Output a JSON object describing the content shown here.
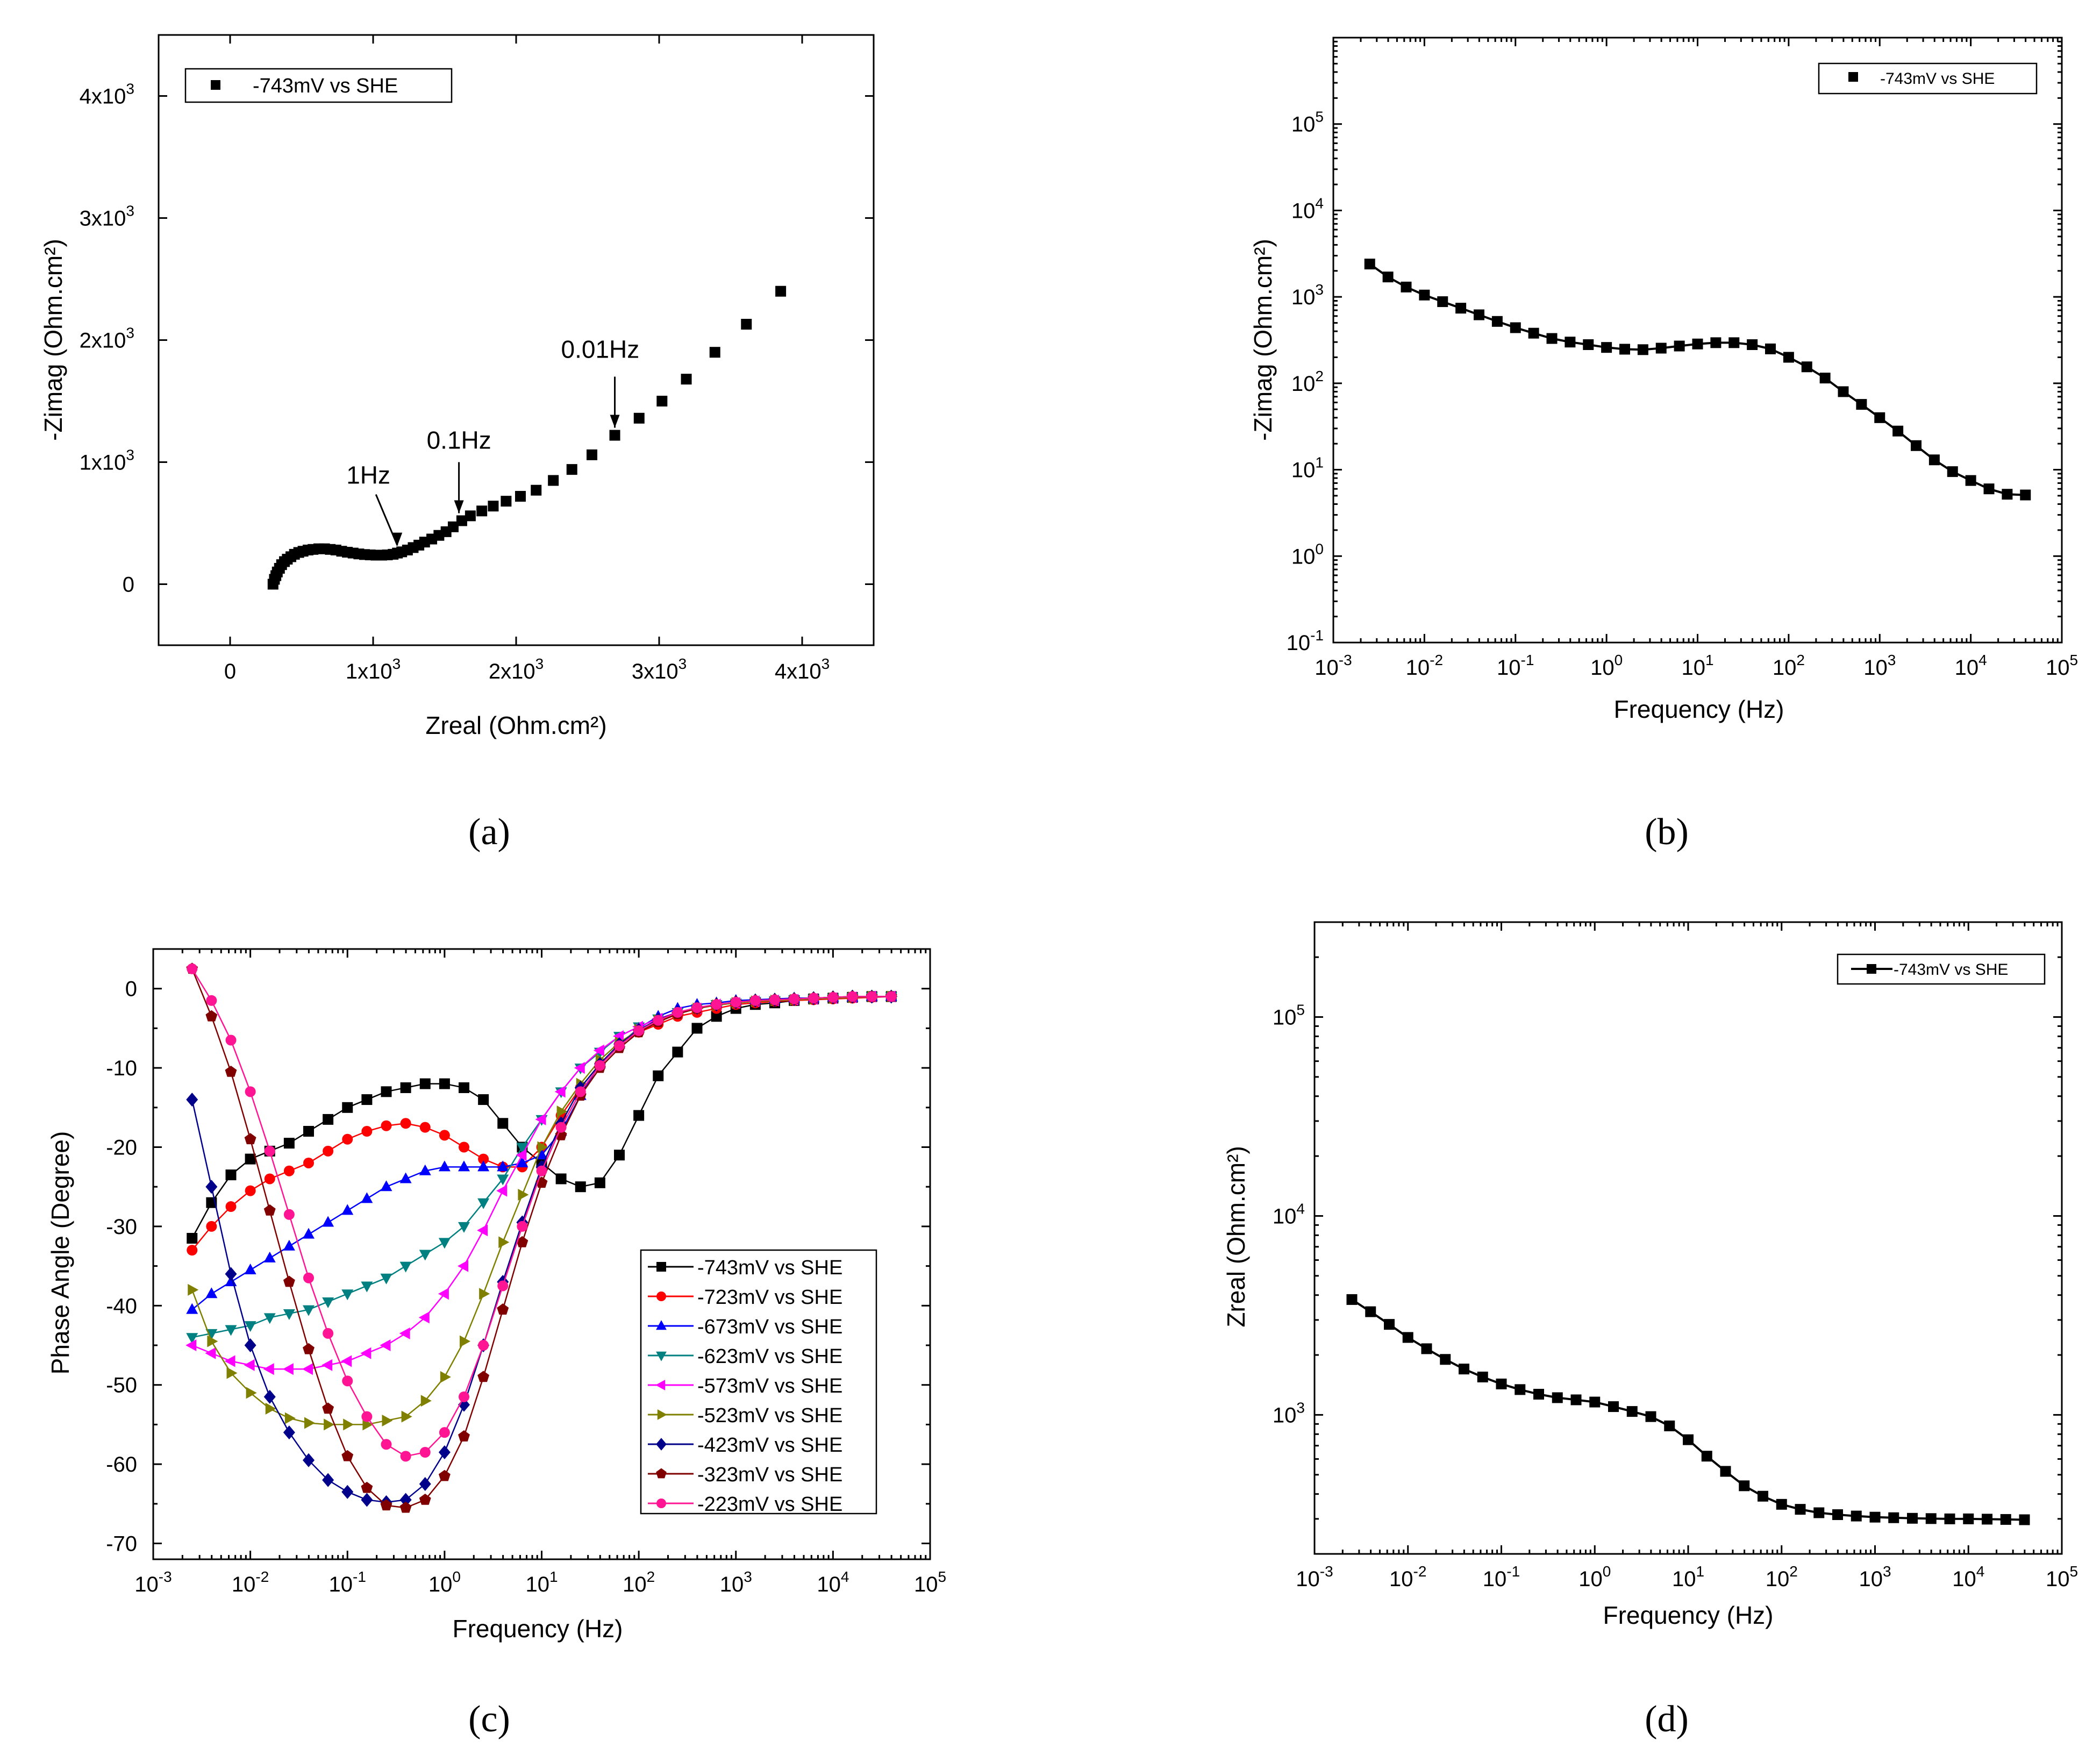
{
  "chart_data": [
    {
      "id": "a",
      "type": "scatter",
      "caption": "(a)",
      "xlabel": "Zreal (Ohm.cm²)",
      "ylabel": "-Zimag (Ohm.cm²)",
      "xlim": [
        -500,
        4500
      ],
      "ylim": [
        -500,
        4500
      ],
      "xticks": [
        {
          "v": 0,
          "t": "0"
        },
        {
          "v": 1000,
          "t": "1x10³"
        },
        {
          "v": 2000,
          "t": "2x10³"
        },
        {
          "v": 3000,
          "t": "3x10³"
        },
        {
          "v": 4000,
          "t": "4x10³"
        }
      ],
      "yticks": [
        {
          "v": 0,
          "t": "0"
        },
        {
          "v": 1000,
          "t": "1x10³"
        },
        {
          "v": 2000,
          "t": "2x10³"
        },
        {
          "v": 3000,
          "t": "3x10³"
        },
        {
          "v": 4000,
          "t": "4x10³"
        }
      ],
      "legend": [
        "-743mV vs SHE"
      ],
      "legend_position": "top-left",
      "annotations": [
        {
          "text": "1Hz",
          "x": 1170,
          "y": 255
        },
        {
          "text": "0.1Hz",
          "x": 1600,
          "y": 520
        },
        {
          "text": "0.01Hz",
          "x": 2690,
          "y": 1220
        }
      ],
      "series": [
        {
          "name": "-743mV vs SHE",
          "x": [
            300,
            310,
            320,
            330,
            345,
            360,
            380,
            400,
            425,
            450,
            480,
            510,
            545,
            580,
            620,
            660,
            700,
            740,
            780,
            820,
            860,
            900,
            940,
            980,
            1020,
            1060,
            1100,
            1140,
            1170,
            1200,
            1240,
            1280,
            1320,
            1360,
            1410,
            1460,
            1510,
            1560,
            1620,
            1680,
            1760,
            1840,
            1930,
            2030,
            2140,
            2260,
            2390,
            2530,
            2690,
            2860,
            3020,
            3190,
            3390,
            3610,
            3850
          ],
          "y": [
            0,
            40,
            70,
            100,
            130,
            160,
            185,
            205,
            225,
            245,
            260,
            270,
            280,
            285,
            290,
            290,
            285,
            280,
            270,
            262,
            255,
            248,
            243,
            240,
            238,
            238,
            240,
            245,
            255,
            265,
            280,
            300,
            320,
            345,
            370,
            400,
            430,
            470,
            520,
            560,
            600,
            640,
            680,
            720,
            770,
            850,
            940,
            1060,
            1220,
            1360,
            1500,
            1680,
            1900,
            2130,
            2400
          ]
        }
      ]
    },
    {
      "id": "b",
      "type": "line",
      "caption": "(b)",
      "xlabel": "Frequency (Hz)",
      "ylabel": "-Zimag (Ohm.cm²)",
      "x_scale": "log",
      "y_scale": "log",
      "xlim": [
        0.001,
        100000
      ],
      "ylim": [
        0.1,
        1000000
      ],
      "xticks": [
        {
          "e": -3
        },
        {
          "e": -2
        },
        {
          "e": -1
        },
        {
          "e": 0
        },
        {
          "e": 1
        },
        {
          "e": 2
        },
        {
          "e": 3
        },
        {
          "e": 4
        },
        {
          "e": 5
        }
      ],
      "yticks": [
        {
          "e": -1
        },
        {
          "e": 0
        },
        {
          "e": 1
        },
        {
          "e": 2
        },
        {
          "e": 3
        },
        {
          "e": 4
        },
        {
          "e": 5
        }
      ],
      "legend": [
        "-743mV vs SHE"
      ],
      "legend_position": "top-right",
      "series": [
        {
          "name": "-743mV vs SHE",
          "x_log": [
            -2.6,
            -2.4,
            -2.2,
            -2.0,
            -1.8,
            -1.6,
            -1.4,
            -1.2,
            -1.0,
            -0.8,
            -0.6,
            -0.4,
            -0.2,
            0.0,
            0.2,
            0.4,
            0.6,
            0.8,
            1.0,
            1.2,
            1.4,
            1.6,
            1.8,
            2.0,
            2.2,
            2.4,
            2.6,
            2.8,
            3.0,
            3.2,
            3.4,
            3.6,
            3.8,
            4.0,
            4.2,
            4.4,
            4.6
          ],
          "y": [
            2400,
            1700,
            1300,
            1050,
            880,
            740,
            620,
            520,
            440,
            380,
            330,
            300,
            280,
            260,
            248,
            245,
            255,
            270,
            285,
            295,
            295,
            280,
            250,
            200,
            155,
            115,
            80,
            57,
            40,
            28,
            19,
            13,
            9.5,
            7.5,
            6.0,
            5.2,
            5.1
          ]
        }
      ]
    },
    {
      "id": "c",
      "type": "line",
      "caption": "(c)",
      "xlabel": "Frequency (Hz)",
      "ylabel": "Phase Angle (Degree)",
      "x_scale": "log",
      "xlim": [
        0.001,
        100000
      ],
      "ylim": [
        -72,
        5
      ],
      "xticks": [
        {
          "e": -3
        },
        {
          "e": -2
        },
        {
          "e": -1
        },
        {
          "e": 0
        },
        {
          "e": 1
        },
        {
          "e": 2
        },
        {
          "e": 3
        },
        {
          "e": 4
        },
        {
          "e": 5
        }
      ],
      "yticks": [
        0,
        -10,
        -20,
        -30,
        -40,
        -50,
        -60,
        -70
      ],
      "legend_position": "bottom-right",
      "x_log": [
        -2.6,
        -2.4,
        -2.2,
        -2.0,
        -1.8,
        -1.6,
        -1.4,
        -1.2,
        -1.0,
        -0.8,
        -0.6,
        -0.4,
        -0.2,
        0.0,
        0.2,
        0.4,
        0.6,
        0.8,
        1.0,
        1.2,
        1.4,
        1.6,
        1.8,
        2.0,
        2.2,
        2.4,
        2.6,
        2.8,
        3.0,
        3.2,
        3.4,
        3.6,
        3.8,
        4.0,
        4.2,
        4.4,
        4.6
      ],
      "series": [
        {
          "name": "-743mV vs SHE",
          "color": "#000000",
          "marker": "square",
          "y": [
            -31.5,
            -27,
            -23.5,
            -21.5,
            -20.5,
            -19.5,
            -18,
            -16.5,
            -15,
            -14,
            -13,
            -12.5,
            -12,
            -12,
            -12.5,
            -14,
            -17,
            -20,
            -22,
            -24,
            -25,
            -24.5,
            -21,
            -16,
            -11,
            -8,
            -5,
            -3.5,
            -2.5,
            -2,
            -1.8,
            -1.5,
            -1.3,
            -1.2,
            -1.1,
            -1.0,
            -1.0
          ]
        },
        {
          "name": "-723mV vs SHE",
          "color": "#ff0000",
          "marker": "circle",
          "y": [
            -33,
            -30,
            -27.5,
            -25.5,
            -24,
            -23,
            -22,
            -20.5,
            -19,
            -18,
            -17.3,
            -17,
            -17.5,
            -18.5,
            -20,
            -21.5,
            -22.5,
            -22.5,
            -20,
            -16,
            -12.5,
            -9.5,
            -7,
            -5.5,
            -4.5,
            -3.5,
            -3,
            -2.5,
            -2,
            -1.8,
            -1.6,
            -1.5,
            -1.4,
            -1.3,
            -1.2,
            -1.1,
            -1.0
          ]
        },
        {
          "name": "-673mV vs SHE",
          "color": "#0000ff",
          "marker": "triangle-up",
          "y": [
            -40.5,
            -38.5,
            -37,
            -35.5,
            -34,
            -32.5,
            -31,
            -29.5,
            -28,
            -26.5,
            -25,
            -24,
            -23,
            -22.5,
            -22.5,
            -22.5,
            -22.5,
            -22,
            -21,
            -18,
            -13.5,
            -9.5,
            -7,
            -5,
            -3.5,
            -2.5,
            -2,
            -1.8,
            -1.5,
            -1.4,
            -1.3,
            -1.2,
            -1.2,
            -1.1,
            -1.1,
            -1.0,
            -1.0
          ]
        },
        {
          "name": "-623mV vs SHE",
          "color": "#008080",
          "marker": "triangle-down",
          "y": [
            -44,
            -43.5,
            -43,
            -42.5,
            -41.5,
            -41,
            -40.5,
            -39.5,
            -38.5,
            -37.5,
            -36.5,
            -35,
            -33.5,
            -32,
            -30,
            -27,
            -24,
            -20,
            -16.5,
            -13,
            -10,
            -8,
            -6,
            -4.8,
            -3.8,
            -3,
            -2.5,
            -2,
            -1.8,
            -1.6,
            -1.5,
            -1.4,
            -1.3,
            -1.2,
            -1.1,
            -1.0,
            -1.0
          ]
        },
        {
          "name": "-573mV vs SHE",
          "color": "#ff00ff",
          "marker": "triangle-left",
          "y": [
            -45,
            -46,
            -47,
            -47.5,
            -48,
            -48,
            -48,
            -47.5,
            -47,
            -46,
            -45,
            -43.5,
            -41.5,
            -38.5,
            -35,
            -30.5,
            -25.5,
            -21,
            -16.5,
            -13,
            -10,
            -7.8,
            -6,
            -4.8,
            -3.8,
            -3,
            -2.5,
            -2,
            -1.8,
            -1.6,
            -1.5,
            -1.4,
            -1.3,
            -1.2,
            -1.1,
            -1.0,
            -1.0
          ]
        },
        {
          "name": "-523mV vs SHE",
          "color": "#808000",
          "marker": "triangle-right",
          "y": [
            -38,
            -44.5,
            -48.5,
            -51,
            -53,
            -54.2,
            -54.8,
            -55,
            -55,
            -55,
            -54.5,
            -54,
            -52,
            -49,
            -44.5,
            -38.5,
            -32,
            -26,
            -20,
            -15.5,
            -12,
            -9,
            -6.8,
            -5.2,
            -4,
            -3.2,
            -2.5,
            -2.1,
            -1.8,
            -1.6,
            -1.5,
            -1.4,
            -1.3,
            -1.2,
            -1.1,
            -1.0,
            -1.0
          ]
        },
        {
          "name": "-423mV vs SHE",
          "color": "#00008b",
          "marker": "diamond",
          "y": [
            -14,
            -25,
            -36,
            -45,
            -51.5,
            -56,
            -59.5,
            -62,
            -63.5,
            -64.5,
            -64.8,
            -64.5,
            -62.5,
            -58.5,
            -52.5,
            -45,
            -37,
            -29.5,
            -22.5,
            -17,
            -12.5,
            -9.5,
            -7,
            -5.2,
            -3.9,
            -3,
            -2.4,
            -2,
            -1.7,
            -1.5,
            -1.4,
            -1.3,
            -1.2,
            -1.1,
            -1.0,
            -1.0,
            -1.0
          ]
        },
        {
          "name": "-323mV vs SHE",
          "color": "#800000",
          "marker": "pentagon",
          "y": [
            2.5,
            -3.5,
            -10.5,
            -19,
            -28,
            -37,
            -45.5,
            -53,
            -59,
            -63,
            -65.2,
            -65.5,
            -64.5,
            -61.5,
            -56.5,
            -49,
            -40.5,
            -32,
            -24.5,
            -18.5,
            -13.5,
            -10,
            -7.5,
            -5.5,
            -4.2,
            -3.2,
            -2.5,
            -2,
            -1.7,
            -1.5,
            -1.4,
            -1.3,
            -1.2,
            -1.1,
            -1.0,
            -1.0,
            -1.0
          ]
        },
        {
          "name": "-223mV vs SHE",
          "color": "#ff1493",
          "marker": "octagon",
          "y": [
            2.5,
            -1.5,
            -6.5,
            -13,
            -20.5,
            -28.5,
            -36.5,
            -43.5,
            -49.5,
            -54,
            -57.5,
            -59,
            -58.5,
            -56,
            -51.5,
            -45,
            -37.5,
            -30,
            -23,
            -17.5,
            -13,
            -9.7,
            -7.2,
            -5.3,
            -4,
            -3,
            -2.4,
            -2,
            -1.7,
            -1.5,
            -1.4,
            -1.3,
            -1.2,
            -1.1,
            -1.0,
            -1.0,
            -1.0
          ]
        }
      ]
    },
    {
      "id": "d",
      "type": "line",
      "caption": "(d)",
      "xlabel": "Frequency (Hz)",
      "ylabel": "Zreal (Ohm.cm²)",
      "x_scale": "log",
      "y_scale": "log",
      "xlim": [
        0.001,
        100000
      ],
      "ylim": [
        200,
        300000
      ],
      "xticks": [
        {
          "e": -3
        },
        {
          "e": -2
        },
        {
          "e": -1
        },
        {
          "e": 0
        },
        {
          "e": 1
        },
        {
          "e": 2
        },
        {
          "e": 3
        },
        {
          "e": 4
        },
        {
          "e": 5
        }
      ],
      "yticks": [
        {
          "e": 3
        },
        {
          "e": 4
        },
        {
          "e": 5
        }
      ],
      "legend": [
        "-743mV vs SHE"
      ],
      "legend_position": "top-right",
      "series": [
        {
          "name": "-743mV vs SHE",
          "x_log": [
            -2.6,
            -2.4,
            -2.2,
            -2.0,
            -1.8,
            -1.6,
            -1.4,
            -1.2,
            -1.0,
            -0.8,
            -0.6,
            -0.4,
            -0.2,
            0.0,
            0.2,
            0.4,
            0.6,
            0.8,
            1.0,
            1.2,
            1.4,
            1.6,
            1.8,
            2.0,
            2.2,
            2.4,
            2.6,
            2.8,
            3.0,
            3.2,
            3.4,
            3.6,
            3.8,
            4.0,
            4.2,
            4.4,
            4.6
          ],
          "y": [
            3800,
            3300,
            2850,
            2450,
            2150,
            1900,
            1700,
            1550,
            1430,
            1340,
            1270,
            1220,
            1190,
            1160,
            1100,
            1040,
            980,
            880,
            750,
            620,
            520,
            440,
            390,
            355,
            335,
            322,
            315,
            310,
            306,
            304,
            302,
            301,
            300,
            300,
            299,
            298,
            297
          ]
        }
      ]
    }
  ]
}
